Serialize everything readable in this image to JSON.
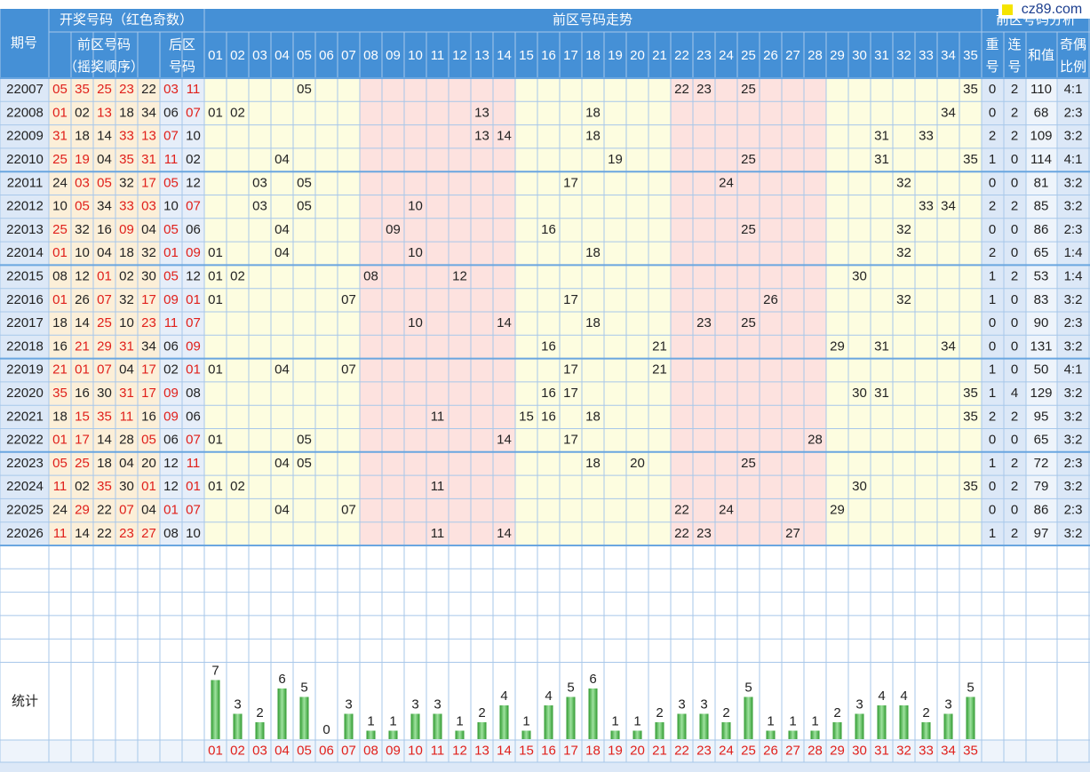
{
  "logo": "cz89.com",
  "header": {
    "period": "期号",
    "draw": "开奖号码（红色奇数）",
    "trend": "前区号码走势",
    "analysis": "前区号码分析",
    "front": [
      "前区号码",
      "（摇奖顺序）"
    ],
    "back": [
      "后区",
      "号码"
    ],
    "numbers": [
      "01",
      "02",
      "03",
      "04",
      "05",
      "06",
      "07",
      "08",
      "09",
      "10",
      "11",
      "12",
      "13",
      "14",
      "15",
      "16",
      "17",
      "18",
      "19",
      "20",
      "21",
      "22",
      "23",
      "24",
      "25",
      "26",
      "27",
      "28",
      "29",
      "30",
      "31",
      "32",
      "33",
      "34",
      "35"
    ],
    "repeat": [
      "重",
      "号"
    ],
    "consecutive": [
      "连",
      "号"
    ],
    "sum": "和值",
    "ratio": [
      "奇偶",
      "比例"
    ]
  },
  "rows": [
    {
      "period": "22007",
      "front": [
        "05",
        "35",
        "25",
        "23",
        "22"
      ],
      "back": [
        "03",
        "11"
      ],
      "repeat": 0,
      "consecutive": 2,
      "sum": 110,
      "ratio": "4:1"
    },
    {
      "period": "22008",
      "front": [
        "01",
        "02",
        "13",
        "18",
        "34"
      ],
      "back": [
        "06",
        "07"
      ],
      "repeat": 0,
      "consecutive": 2,
      "sum": 68,
      "ratio": "2:3"
    },
    {
      "period": "22009",
      "front": [
        "31",
        "18",
        "14",
        "33",
        "13"
      ],
      "back": [
        "07",
        "10"
      ],
      "repeat": 2,
      "consecutive": 2,
      "sum": 109,
      "ratio": "3:2"
    },
    {
      "period": "22010",
      "front": [
        "25",
        "19",
        "04",
        "35",
        "31"
      ],
      "back": [
        "11",
        "02"
      ],
      "repeat": 1,
      "consecutive": 0,
      "sum": 114,
      "ratio": "4:1"
    },
    {
      "period": "22011",
      "front": [
        "24",
        "03",
        "05",
        "32",
        "17"
      ],
      "back": [
        "05",
        "12"
      ],
      "repeat": 0,
      "consecutive": 0,
      "sum": 81,
      "ratio": "3:2"
    },
    {
      "period": "22012",
      "front": [
        "10",
        "05",
        "34",
        "33",
        "03"
      ],
      "back": [
        "10",
        "07"
      ],
      "repeat": 2,
      "consecutive": 2,
      "sum": 85,
      "ratio": "3:2"
    },
    {
      "period": "22013",
      "front": [
        "25",
        "32",
        "16",
        "09",
        "04"
      ],
      "back": [
        "05",
        "06"
      ],
      "repeat": 0,
      "consecutive": 0,
      "sum": 86,
      "ratio": "2:3"
    },
    {
      "period": "22014",
      "front": [
        "01",
        "10",
        "04",
        "18",
        "32"
      ],
      "back": [
        "01",
        "09"
      ],
      "repeat": 2,
      "consecutive": 0,
      "sum": 65,
      "ratio": "1:4"
    },
    {
      "period": "22015",
      "front": [
        "08",
        "12",
        "01",
        "02",
        "30"
      ],
      "back": [
        "05",
        "12"
      ],
      "repeat": 1,
      "consecutive": 2,
      "sum": 53,
      "ratio": "1:4"
    },
    {
      "period": "22016",
      "front": [
        "01",
        "26",
        "07",
        "32",
        "17"
      ],
      "back": [
        "09",
        "01"
      ],
      "repeat": 1,
      "consecutive": 0,
      "sum": 83,
      "ratio": "3:2"
    },
    {
      "period": "22017",
      "front": [
        "18",
        "14",
        "25",
        "10",
        "23"
      ],
      "back": [
        "11",
        "07"
      ],
      "repeat": 0,
      "consecutive": 0,
      "sum": 90,
      "ratio": "2:3"
    },
    {
      "period": "22018",
      "front": [
        "16",
        "21",
        "29",
        "31",
        "34"
      ],
      "back": [
        "06",
        "09"
      ],
      "repeat": 0,
      "consecutive": 0,
      "sum": 131,
      "ratio": "3:2"
    },
    {
      "period": "22019",
      "front": [
        "21",
        "01",
        "07",
        "04",
        "17"
      ],
      "back": [
        "02",
        "01"
      ],
      "repeat": 1,
      "consecutive": 0,
      "sum": 50,
      "ratio": "4:1"
    },
    {
      "period": "22020",
      "front": [
        "35",
        "16",
        "30",
        "31",
        "17"
      ],
      "back": [
        "09",
        "08"
      ],
      "repeat": 1,
      "consecutive": 4,
      "sum": 129,
      "ratio": "3:2"
    },
    {
      "period": "22021",
      "front": [
        "18",
        "15",
        "35",
        "11",
        "16"
      ],
      "back": [
        "09",
        "06"
      ],
      "repeat": 2,
      "consecutive": 2,
      "sum": 95,
      "ratio": "3:2"
    },
    {
      "period": "22022",
      "front": [
        "01",
        "17",
        "14",
        "28",
        "05"
      ],
      "back": [
        "06",
        "07"
      ],
      "repeat": 0,
      "consecutive": 0,
      "sum": 65,
      "ratio": "3:2"
    },
    {
      "period": "22023",
      "front": [
        "05",
        "25",
        "18",
        "04",
        "20"
      ],
      "back": [
        "12",
        "11"
      ],
      "repeat": 1,
      "consecutive": 2,
      "sum": 72,
      "ratio": "2:3"
    },
    {
      "period": "22024",
      "front": [
        "11",
        "02",
        "35",
        "30",
        "01"
      ],
      "back": [
        "12",
        "01"
      ],
      "repeat": 0,
      "consecutive": 2,
      "sum": 79,
      "ratio": "3:2"
    },
    {
      "period": "22025",
      "front": [
        "24",
        "29",
        "22",
        "07",
        "04"
      ],
      "back": [
        "01",
        "07"
      ],
      "repeat": 0,
      "consecutive": 0,
      "sum": 86,
      "ratio": "2:3"
    },
    {
      "period": "22026",
      "front": [
        "11",
        "14",
        "22",
        "23",
        "27"
      ],
      "back": [
        "08",
        "10"
      ],
      "repeat": 1,
      "consecutive": 2,
      "sum": 97,
      "ratio": "3:2"
    }
  ],
  "stats": {
    "label": "统计",
    "counts": [
      7,
      3,
      2,
      6,
      5,
      0,
      3,
      1,
      1,
      3,
      3,
      1,
      2,
      4,
      1,
      4,
      5,
      6,
      1,
      1,
      2,
      3,
      3,
      2,
      5,
      1,
      1,
      1,
      2,
      3,
      4,
      4,
      2,
      3,
      5
    ]
  }
}
